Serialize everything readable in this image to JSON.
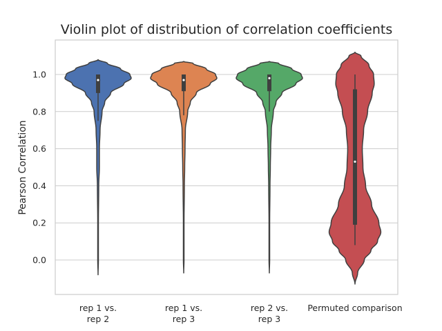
{
  "chart_data": {
    "type": "violin",
    "title": "Violin plot of distribution of correlation coefficients",
    "xlabel": "",
    "ylabel": "Pearson Correlation",
    "ylim": [
      -0.18,
      1.18
    ],
    "yticks": [
      "0.0",
      "0.2",
      "0.4",
      "0.6",
      "0.8",
      "1.0"
    ],
    "ytick_values": [
      0.0,
      0.2,
      0.4,
      0.6,
      0.8,
      1.0
    ],
    "grid": true,
    "categories": [
      [
        "rep 1 vs.",
        "rep 2"
      ],
      [
        "rep 1 vs.",
        "rep 3"
      ],
      [
        "rep 2 vs.",
        "rep 3"
      ],
      [
        "Permuted comparison"
      ]
    ],
    "series": [
      {
        "color": "#4c72b0",
        "min": -0.08,
        "max": 1.08,
        "median": 0.97,
        "q1": 0.9,
        "q3": 1.0,
        "whisker_low": 0.75,
        "whisker_high": 1.0,
        "density": [
          [
            -0.08,
            0.0
          ],
          [
            0.0,
            0.01
          ],
          [
            0.2,
            0.01
          ],
          [
            0.4,
            0.02
          ],
          [
            0.5,
            0.04
          ],
          [
            0.6,
            0.04
          ],
          [
            0.7,
            0.06
          ],
          [
            0.8,
            0.12
          ],
          [
            0.85,
            0.2
          ],
          [
            0.9,
            0.38
          ],
          [
            0.95,
            0.78
          ],
          [
            0.98,
            1.0
          ],
          [
            1.0,
            0.96
          ],
          [
            1.03,
            0.68
          ],
          [
            1.06,
            0.28
          ],
          [
            1.08,
            0.0
          ]
        ]
      },
      {
        "color": "#dd8452",
        "min": -0.07,
        "max": 1.07,
        "median": 0.97,
        "q1": 0.91,
        "q3": 1.0,
        "whisker_low": 0.78,
        "whisker_high": 1.0,
        "density": [
          [
            -0.07,
            0.0
          ],
          [
            0.0,
            0.01
          ],
          [
            0.2,
            0.01
          ],
          [
            0.4,
            0.02
          ],
          [
            0.5,
            0.03
          ],
          [
            0.6,
            0.04
          ],
          [
            0.7,
            0.05
          ],
          [
            0.8,
            0.12
          ],
          [
            0.85,
            0.2
          ],
          [
            0.9,
            0.38
          ],
          [
            0.95,
            0.8
          ],
          [
            0.98,
            1.0
          ],
          [
            1.0,
            0.96
          ],
          [
            1.03,
            0.68
          ],
          [
            1.06,
            0.28
          ],
          [
            1.07,
            0.0
          ]
        ]
      },
      {
        "color": "#55a868",
        "min": -0.07,
        "max": 1.07,
        "median": 0.98,
        "q1": 0.91,
        "q3": 1.0,
        "whisker_low": 0.8,
        "whisker_high": 1.0,
        "density": [
          [
            -0.07,
            0.0
          ],
          [
            0.0,
            0.01
          ],
          [
            0.2,
            0.01
          ],
          [
            0.4,
            0.02
          ],
          [
            0.5,
            0.03
          ],
          [
            0.6,
            0.04
          ],
          [
            0.7,
            0.06
          ],
          [
            0.8,
            0.12
          ],
          [
            0.85,
            0.2
          ],
          [
            0.9,
            0.38
          ],
          [
            0.95,
            0.8
          ],
          [
            0.98,
            1.0
          ],
          [
            1.0,
            0.96
          ],
          [
            1.03,
            0.68
          ],
          [
            1.06,
            0.28
          ],
          [
            1.07,
            0.0
          ]
        ]
      },
      {
        "color": "#c44e52",
        "min": -0.13,
        "max": 1.12,
        "median": 0.53,
        "q1": 0.19,
        "q3": 0.92,
        "whisker_low": 0.08,
        "whisker_high": 1.0,
        "density": [
          [
            -0.13,
            0.0
          ],
          [
            -0.07,
            0.08
          ],
          [
            0.0,
            0.28
          ],
          [
            0.05,
            0.48
          ],
          [
            0.1,
            0.68
          ],
          [
            0.15,
            0.78
          ],
          [
            0.2,
            0.72
          ],
          [
            0.3,
            0.5
          ],
          [
            0.4,
            0.32
          ],
          [
            0.5,
            0.24
          ],
          [
            0.6,
            0.22
          ],
          [
            0.7,
            0.26
          ],
          [
            0.8,
            0.38
          ],
          [
            0.9,
            0.52
          ],
          [
            0.95,
            0.58
          ],
          [
            1.0,
            0.56
          ],
          [
            1.05,
            0.42
          ],
          [
            1.1,
            0.18
          ],
          [
            1.12,
            0.0
          ]
        ]
      }
    ]
  }
}
